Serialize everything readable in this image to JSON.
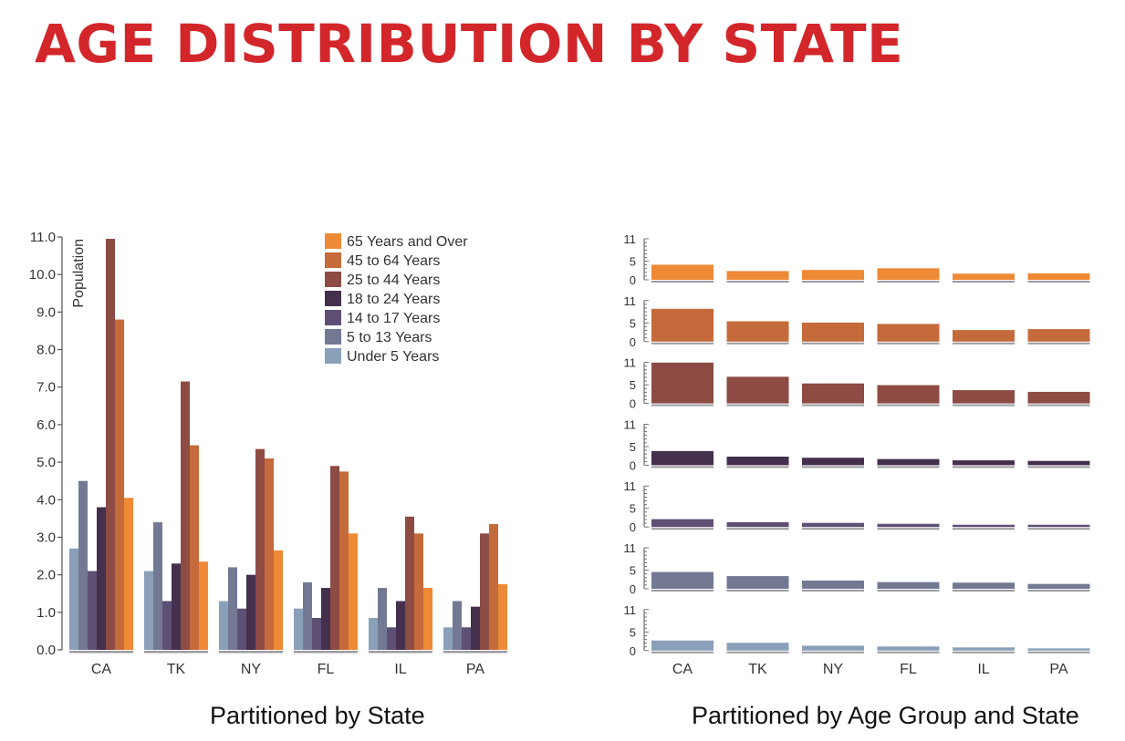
{
  "page": {
    "title": "AGE DISTRIBUTION BY STATE",
    "title_color": "#d3262b"
  },
  "left_caption": "Partitioned by State",
  "right_caption": "Partitioned by Age Group and State",
  "chart_data": [
    {
      "type": "bar",
      "categories": [
        "CA",
        "TK",
        "NY",
        "FL",
        "IL",
        "PA"
      ],
      "ylabel": "Population",
      "ylim": [
        0,
        11
      ],
      "yticks": [
        "0.0",
        "1.0",
        "2.0",
        "3.0",
        "4.0",
        "5.0",
        "6.0",
        "7.0",
        "8.0",
        "9.0",
        "10.0",
        "11.0"
      ],
      "legend_position": "top-right",
      "series": [
        {
          "name": "Under 5 Years",
          "color": "#8aa0b8",
          "values": [
            2.7,
            2.1,
            1.3,
            1.1,
            0.85,
            0.6
          ]
        },
        {
          "name": "5 to 13 Years",
          "color": "#737993",
          "values": [
            4.5,
            3.4,
            2.2,
            1.8,
            1.65,
            1.3
          ]
        },
        {
          "name": "14 to 17 Years",
          "color": "#5e4f75",
          "values": [
            2.1,
            1.3,
            1.1,
            0.85,
            0.6,
            0.6
          ]
        },
        {
          "name": "18 to 24 Years",
          "color": "#44304d",
          "values": [
            3.8,
            2.3,
            2.0,
            1.65,
            1.3,
            1.15
          ]
        },
        {
          "name": "25 to 44 Years",
          "color": "#8d4b44",
          "values": [
            10.95,
            7.15,
            5.35,
            4.9,
            3.55,
            3.1
          ]
        },
        {
          "name": "45 to 64 Years",
          "color": "#c56a3a",
          "values": [
            8.8,
            5.45,
            5.1,
            4.75,
            3.1,
            3.35
          ]
        },
        {
          "name": "65 Years and Over",
          "color": "#ee8a35",
          "values": [
            4.05,
            2.35,
            2.65,
            3.1,
            1.65,
            1.75
          ]
        }
      ]
    },
    {
      "type": "bar",
      "layout": "small-multiples",
      "categories": [
        "CA",
        "TK",
        "NY",
        "FL",
        "IL",
        "PA"
      ],
      "ylim": [
        0,
        11
      ],
      "yticks": [
        "0",
        "5",
        "11"
      ],
      "panels": [
        {
          "name": "65 Years and Over",
          "color": "#ee8a35",
          "values": [
            4.05,
            2.35,
            2.65,
            3.1,
            1.65,
            1.75
          ]
        },
        {
          "name": "45 to 64 Years",
          "color": "#c56a3a",
          "values": [
            8.8,
            5.45,
            5.1,
            4.75,
            3.1,
            3.35
          ]
        },
        {
          "name": "25 to 44 Years",
          "color": "#8d4b44",
          "values": [
            10.95,
            7.15,
            5.35,
            4.9,
            3.55,
            3.1
          ]
        },
        {
          "name": "18 to 24 Years",
          "color": "#44304d",
          "values": [
            3.8,
            2.3,
            2.0,
            1.65,
            1.3,
            1.15
          ]
        },
        {
          "name": "14 to 17 Years",
          "color": "#5e4f75",
          "values": [
            2.1,
            1.3,
            1.1,
            0.85,
            0.6,
            0.6
          ]
        },
        {
          "name": "5 to 13 Years",
          "color": "#737993",
          "values": [
            4.5,
            3.4,
            2.2,
            1.8,
            1.65,
            1.3
          ]
        },
        {
          "name": "Under 5 Years",
          "color": "#8aa0b8",
          "values": [
            2.7,
            2.1,
            1.3,
            1.1,
            0.85,
            0.6
          ]
        }
      ]
    }
  ]
}
